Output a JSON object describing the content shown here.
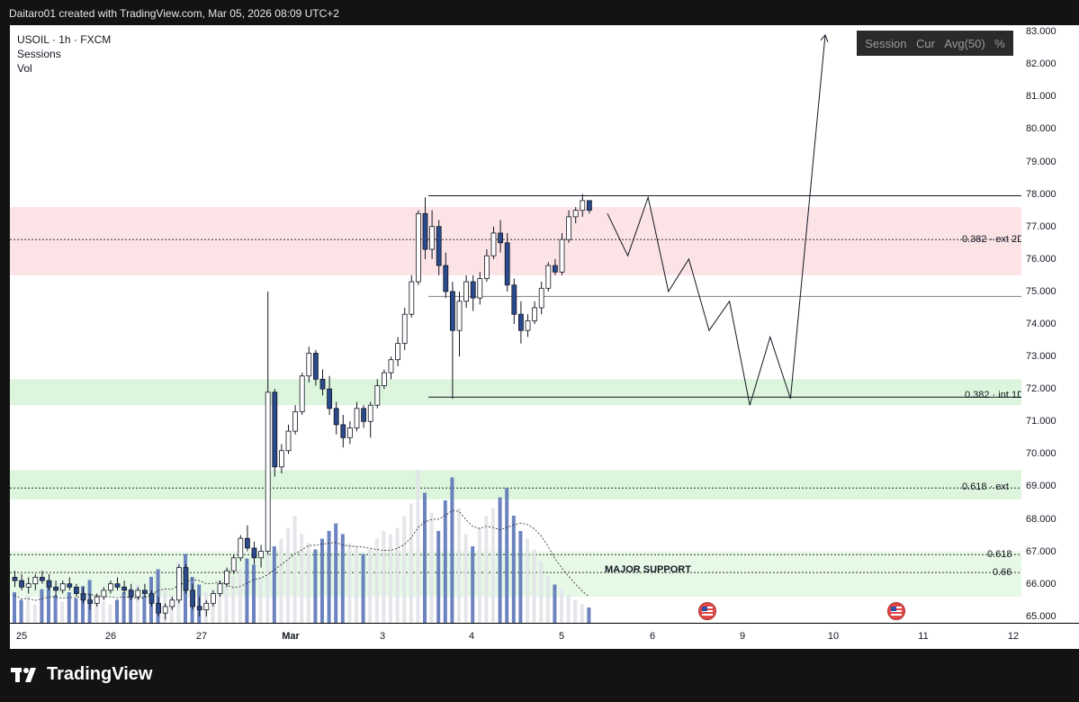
{
  "header": {
    "text": "Daitaro01 created with TradingView.com, Mar 05, 2026 08:09 UTC+2"
  },
  "legend": {
    "symbol": "USOIL · 1h · FXCM",
    "sessions": "Sessions",
    "vol": "Vol"
  },
  "controls": {
    "session": "Session",
    "cur": "Cur",
    "avg": "Avg(50)",
    "pct": "%"
  },
  "brand": {
    "name": "TradingView"
  },
  "annotations": {
    "ext_382": "0.382 · ext",
    "ext_382_suffix": "2D",
    "int_382": "0.382 · int",
    "int_382_suffix": "1D",
    "ext_618": "0.618 · ext",
    "fib_618": "0.618",
    "fib_66": "0.66",
    "major_support": "MAJOR SUPPORT"
  },
  "colors": {
    "up_candle": "#ffffff",
    "down_candle": "#2b4a8c",
    "resistance_zone": "#fbe3e6",
    "support_zone": "#dcf5dc",
    "volume_up": "#e1e3e8",
    "volume_down": "#5c76b8"
  },
  "chart_data": {
    "type": "candlestick",
    "symbol": "USOIL",
    "timeframe": "1h",
    "y_ticks": [
      "83.000",
      "82.000",
      "81.000",
      "80.000",
      "79.000",
      "78.000",
      "77.000",
      "76.000",
      "75.000",
      "74.000",
      "73.000",
      "72.000",
      "71.000",
      "70.000",
      "69.000",
      "68.000",
      "67.000",
      "66.000",
      "65.000"
    ],
    "x_ticks": [
      {
        "label": "25",
        "bold": false
      },
      {
        "label": "26",
        "bold": false
      },
      {
        "label": "27",
        "bold": false
      },
      {
        "label": "Mar",
        "bold": true
      },
      {
        "label": "3",
        "bold": false
      },
      {
        "label": "4",
        "bold": false
      },
      {
        "label": "5",
        "bold": false
      },
      {
        "label": "6",
        "bold": false
      },
      {
        "label": "9",
        "bold": false
      },
      {
        "label": "10",
        "bold": false
      },
      {
        "label": "11",
        "bold": false
      },
      {
        "label": "12",
        "bold": false
      }
    ],
    "ylim": [
      64.8,
      83.2
    ],
    "zones": [
      {
        "kind": "resistance",
        "from": 75.5,
        "to": 77.6
      },
      {
        "kind": "support",
        "from": 71.5,
        "to": 72.3
      },
      {
        "kind": "support",
        "from": 68.6,
        "to": 69.5
      },
      {
        "kind": "major_support",
        "from": 65.6,
        "to": 67.0
      }
    ],
    "levels": [
      {
        "name": "top",
        "value": 77.95
      },
      {
        "name": "0.382 ext",
        "value": 76.6
      },
      {
        "name": "mid",
        "value": 74.85
      },
      {
        "name": "0.382 int",
        "value": 71.75
      },
      {
        "name": "0.618 ext",
        "value": 68.95
      },
      {
        "name": "0.618",
        "value": 66.9
      },
      {
        "name": "0.66",
        "value": 66.35
      }
    ],
    "candles_ohlc": [
      [
        66.2,
        66.4,
        65.9,
        66.1
      ],
      [
        66.1,
        66.3,
        65.8,
        65.9
      ],
      [
        65.9,
        66.2,
        65.7,
        66.0
      ],
      [
        66.0,
        66.3,
        65.8,
        66.2
      ],
      [
        66.2,
        66.4,
        66.0,
        66.1
      ],
      [
        66.1,
        66.3,
        65.8,
        65.9
      ],
      [
        65.9,
        66.1,
        65.6,
        65.8
      ],
      [
        65.8,
        66.1,
        65.7,
        66.0
      ],
      [
        66.0,
        66.2,
        65.8,
        65.9
      ],
      [
        65.9,
        66.0,
        65.6,
        65.7
      ],
      [
        65.7,
        65.9,
        65.4,
        65.5
      ],
      [
        65.5,
        65.7,
        65.2,
        65.4
      ],
      [
        65.4,
        65.7,
        65.3,
        65.6
      ],
      [
        65.6,
        65.9,
        65.5,
        65.8
      ],
      [
        65.8,
        66.1,
        65.7,
        66.0
      ],
      [
        66.0,
        66.2,
        65.8,
        65.9
      ],
      [
        65.9,
        66.1,
        65.7,
        65.8
      ],
      [
        65.8,
        66.0,
        65.5,
        65.6
      ],
      [
        65.6,
        65.9,
        65.5,
        65.8
      ],
      [
        65.8,
        66.0,
        65.6,
        65.7
      ],
      [
        65.7,
        65.8,
        65.3,
        65.4
      ],
      [
        65.4,
        65.6,
        65.0,
        65.1
      ],
      [
        65.1,
        65.4,
        64.9,
        65.3
      ],
      [
        65.3,
        65.6,
        65.2,
        65.5
      ],
      [
        65.5,
        66.6,
        65.4,
        66.5
      ],
      [
        66.5,
        66.6,
        65.7,
        65.8
      ],
      [
        65.8,
        66.0,
        65.2,
        65.3
      ],
      [
        65.3,
        65.6,
        65.0,
        65.2
      ],
      [
        65.2,
        65.5,
        65.0,
        65.4
      ],
      [
        65.4,
        65.8,
        65.3,
        65.7
      ],
      [
        65.7,
        66.1,
        65.6,
        66.0
      ],
      [
        66.0,
        66.5,
        65.9,
        66.4
      ],
      [
        66.4,
        66.9,
        66.3,
        66.8
      ],
      [
        66.8,
        67.5,
        66.7,
        67.4
      ],
      [
        67.4,
        67.8,
        67.0,
        67.1
      ],
      [
        67.1,
        67.3,
        66.6,
        66.8
      ],
      [
        66.8,
        67.2,
        66.5,
        67.0
      ],
      [
        67.0,
        75.0,
        66.9,
        71.9
      ],
      [
        71.9,
        72.0,
        69.3,
        69.6
      ],
      [
        69.6,
        70.3,
        69.4,
        70.1
      ],
      [
        70.1,
        70.9,
        70.0,
        70.7
      ],
      [
        70.7,
        71.5,
        70.6,
        71.3
      ],
      [
        71.3,
        72.5,
        71.2,
        72.4
      ],
      [
        72.4,
        73.3,
        72.2,
        73.1
      ],
      [
        73.1,
        73.2,
        72.1,
        72.3
      ],
      [
        72.3,
        72.6,
        71.8,
        72.0
      ],
      [
        72.0,
        72.4,
        71.2,
        71.4
      ],
      [
        71.4,
        71.6,
        70.6,
        70.9
      ],
      [
        70.9,
        71.2,
        70.2,
        70.5
      ],
      [
        70.5,
        71.0,
        70.3,
        70.8
      ],
      [
        70.8,
        71.6,
        70.7,
        71.4
      ],
      [
        71.4,
        71.5,
        70.8,
        71.0
      ],
      [
        71.0,
        71.6,
        70.5,
        71.5
      ],
      [
        71.5,
        72.3,
        71.4,
        72.1
      ],
      [
        72.1,
        72.6,
        72.0,
        72.5
      ],
      [
        72.5,
        73.0,
        72.3,
        72.9
      ],
      [
        72.9,
        73.6,
        72.7,
        73.4
      ],
      [
        73.4,
        74.5,
        73.2,
        74.3
      ],
      [
        74.3,
        75.5,
        74.2,
        75.3
      ],
      [
        75.3,
        77.5,
        75.2,
        77.4
      ],
      [
        77.4,
        77.9,
        76.0,
        76.3
      ],
      [
        76.3,
        77.5,
        76.0,
        77.0
      ],
      [
        77.0,
        77.2,
        75.5,
        75.8
      ],
      [
        75.8,
        76.2,
        74.8,
        75.0
      ],
      [
        75.0,
        75.3,
        71.7,
        73.8
      ],
      [
        73.8,
        75.0,
        73.0,
        74.7
      ],
      [
        74.7,
        75.5,
        74.5,
        75.3
      ],
      [
        75.3,
        75.5,
        74.4,
        74.8
      ],
      [
        74.8,
        75.6,
        74.6,
        75.4
      ],
      [
        75.4,
        76.3,
        75.3,
        76.1
      ],
      [
        76.1,
        77.0,
        76.0,
        76.8
      ],
      [
        76.8,
        77.2,
        76.2,
        76.5
      ],
      [
        76.5,
        76.8,
        75.0,
        75.2
      ],
      [
        75.2,
        75.4,
        74.0,
        74.3
      ],
      [
        74.3,
        74.7,
        73.4,
        73.8
      ],
      [
        73.8,
        74.3,
        73.6,
        74.1
      ],
      [
        74.1,
        74.7,
        74.0,
        74.5
      ],
      [
        74.5,
        75.3,
        74.3,
        75.1
      ],
      [
        75.1,
        75.9,
        75.0,
        75.8
      ],
      [
        75.8,
        76.0,
        75.5,
        75.6
      ],
      [
        75.6,
        76.8,
        75.5,
        76.6
      ],
      [
        76.6,
        77.5,
        76.5,
        77.3
      ],
      [
        77.3,
        77.6,
        77.1,
        77.5
      ],
      [
        77.5,
        78.0,
        77.3,
        77.8
      ],
      [
        77.8,
        77.7,
        77.4,
        77.5
      ]
    ],
    "projection": [
      [
        77.4,
        0
      ],
      [
        76.1,
        1
      ],
      [
        77.9,
        2
      ],
      [
        75.0,
        3
      ],
      [
        76.0,
        4
      ],
      [
        73.8,
        5
      ],
      [
        74.7,
        6
      ],
      [
        71.5,
        7
      ],
      [
        73.6,
        8
      ],
      [
        71.7,
        9
      ],
      [
        82.9,
        10
      ]
    ],
    "volume_relative": [
      0.2,
      0.15,
      0.18,
      0.12,
      0.22,
      0.25,
      0.18,
      0.14,
      0.2,
      0.16,
      0.24,
      0.28,
      0.18,
      0.14,
      0.12,
      0.15,
      0.2,
      0.22,
      0.25,
      0.18,
      0.3,
      0.35,
      0.22,
      0.18,
      0.4,
      0.45,
      0.3,
      0.25,
      0.2,
      0.22,
      0.28,
      0.24,
      0.3,
      0.35,
      0.42,
      0.38,
      0.3,
      0.45,
      0.5,
      0.55,
      0.62,
      0.7,
      0.58,
      0.52,
      0.48,
      0.55,
      0.6,
      0.65,
      0.58,
      0.52,
      0.5,
      0.45,
      0.48,
      0.55,
      0.6,
      0.58,
      0.62,
      0.7,
      0.78,
      1.0,
      0.85,
      0.72,
      0.6,
      0.8,
      0.95,
      0.75,
      0.58,
      0.5,
      0.62,
      0.7,
      0.75,
      0.82,
      0.88,
      0.7,
      0.6,
      0.55,
      0.48,
      0.4,
      0.3,
      0.25,
      0.22,
      0.18,
      0.15,
      0.12,
      0.1
    ]
  }
}
